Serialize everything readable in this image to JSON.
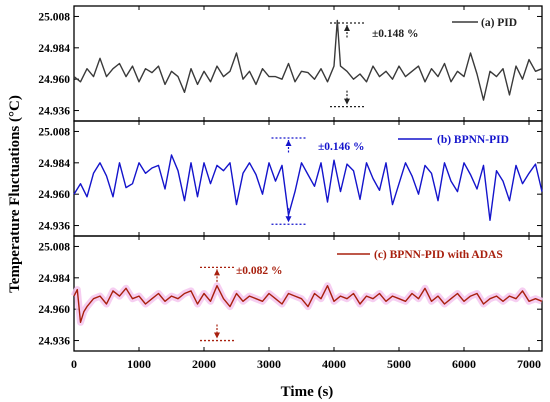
{
  "chart_data": {
    "type": "line",
    "xlabel": "Time (s)",
    "ylabel": "Temperature Fluctuations (°C)",
    "xlim": [
      0,
      7200
    ],
    "ylim": [
      24.928,
      25.016
    ],
    "x_ticks": [
      0,
      1000,
      2000,
      3000,
      4000,
      5000,
      6000,
      7000
    ],
    "x_tick_labels": [
      "0",
      "1000",
      "2000",
      "3000",
      "4000",
      "5000",
      "6000",
      "7000"
    ],
    "y_ticks": [
      24.936,
      24.96,
      24.984,
      25.008
    ],
    "y_tick_labels": [
      "24.936",
      "24.960",
      "24.984",
      "25.008"
    ],
    "panels": [
      {
        "legend": "(a) PID",
        "color": "#3a3a3a",
        "band_color": "",
        "annotation": "±0.148 %",
        "annotation_color": "#222222",
        "range_marker_x": 4200,
        "range_marker_ylim": [
          24.939,
          25.003
        ],
        "x": [
          0,
          100,
          200,
          300,
          400,
          500,
          600,
          700,
          800,
          900,
          1000,
          1100,
          1200,
          1300,
          1400,
          1500,
          1600,
          1700,
          1800,
          1900,
          2000,
          2100,
          2200,
          2300,
          2400,
          2500,
          2600,
          2700,
          2800,
          2900,
          3000,
          3100,
          3200,
          3300,
          3400,
          3500,
          3600,
          3700,
          3800,
          3900,
          4000,
          4050,
          4100,
          4200,
          4300,
          4400,
          4500,
          4600,
          4700,
          4800,
          4900,
          5000,
          5100,
          5200,
          5300,
          5400,
          5500,
          5600,
          5700,
          5800,
          5900,
          6000,
          6100,
          6200,
          6300,
          6400,
          6500,
          6600,
          6700,
          6800,
          6900,
          7000,
          7100,
          7200
        ],
        "values": [
          24.962,
          24.958,
          24.968,
          24.962,
          24.976,
          24.962,
          24.968,
          24.972,
          24.962,
          24.97,
          24.958,
          24.968,
          24.965,
          24.97,
          24.956,
          24.966,
          24.962,
          24.95,
          24.968,
          24.956,
          24.966,
          24.958,
          24.97,
          24.962,
          24.966,
          24.98,
          24.96,
          24.966,
          24.956,
          24.968,
          24.962,
          24.962,
          24.96,
          24.972,
          24.958,
          24.966,
          24.965,
          24.96,
          24.968,
          24.958,
          24.97,
          25.005,
          24.97,
          24.966,
          24.96,
          24.964,
          24.958,
          24.97,
          24.962,
          24.966,
          24.96,
          24.97,
          24.962,
          24.966,
          24.97,
          24.958,
          24.968,
          24.962,
          24.972,
          24.958,
          24.966,
          24.962,
          24.98,
          24.964,
          24.944,
          24.966,
          24.962,
          24.968,
          24.948,
          24.97,
          24.96,
          24.975,
          24.966,
          24.968
        ]
      },
      {
        "legend": "(b) BPNN-PID",
        "color": "#1414cc",
        "band_color": "",
        "annotation": "±0.146 %",
        "annotation_color": "#1414cc",
        "range_marker_x": 3300,
        "range_marker_ylim": [
          24.937,
          25.003
        ],
        "x": [
          0,
          100,
          200,
          300,
          400,
          500,
          600,
          700,
          800,
          900,
          1000,
          1100,
          1200,
          1300,
          1400,
          1500,
          1600,
          1700,
          1800,
          1900,
          2000,
          2100,
          2200,
          2300,
          2400,
          2500,
          2600,
          2700,
          2800,
          2900,
          3000,
          3100,
          3200,
          3300,
          3400,
          3500,
          3600,
          3700,
          3800,
          3900,
          4000,
          4100,
          4200,
          4300,
          4400,
          4500,
          4600,
          4700,
          4800,
          4900,
          5000,
          5100,
          5200,
          5300,
          5400,
          5500,
          5600,
          5700,
          5800,
          5900,
          6000,
          6100,
          6200,
          6300,
          6400,
          6500,
          6600,
          6700,
          6800,
          6900,
          7000,
          7100,
          7200
        ],
        "values": [
          24.96,
          24.968,
          24.958,
          24.976,
          24.984,
          24.974,
          24.958,
          24.984,
          24.965,
          24.968,
          24.984,
          24.976,
          24.98,
          24.982,
          24.964,
          24.99,
          24.978,
          24.955,
          24.984,
          24.958,
          24.984,
          24.968,
          24.982,
          24.978,
          24.984,
          24.952,
          24.976,
          24.984,
          24.975,
          24.96,
          24.984,
          24.97,
          24.982,
          24.944,
          24.962,
          24.984,
          24.975,
          24.966,
          24.984,
          24.954,
          24.986,
          24.962,
          24.983,
          24.978,
          24.956,
          24.984,
          24.972,
          24.963,
          24.984,
          24.952,
          24.968,
          24.984,
          24.974,
          24.96,
          24.982,
          24.976,
          24.955,
          24.984,
          24.97,
          24.962,
          24.984,
          24.975,
          24.964,
          24.982,
          24.94,
          24.978,
          24.97,
          24.955,
          24.982,
          24.968,
          24.976,
          24.983,
          24.962
        ]
      },
      {
        "legend": "(c) BPNN-PID with ADAS",
        "color": "#a8200e",
        "band_color": "#f5c6ef",
        "annotation": "±0.082 %",
        "annotation_color": "#a8200e",
        "range_marker_x": 2200,
        "range_marker_ylim": [
          24.936,
          24.992
        ],
        "x": [
          0,
          50,
          100,
          150,
          200,
          300,
          400,
          500,
          600,
          700,
          800,
          900,
          1000,
          1100,
          1200,
          1300,
          1400,
          1500,
          1600,
          1700,
          1800,
          1900,
          2000,
          2100,
          2200,
          2300,
          2400,
          2500,
          2600,
          2700,
          2800,
          2900,
          3000,
          3100,
          3200,
          3300,
          3400,
          3500,
          3600,
          3700,
          3800,
          3900,
          4000,
          4100,
          4200,
          4300,
          4400,
          4500,
          4600,
          4700,
          4800,
          4900,
          5000,
          5100,
          5200,
          5300,
          5400,
          5500,
          5600,
          5700,
          5800,
          5900,
          6000,
          6100,
          6200,
          6300,
          6400,
          6500,
          6600,
          6700,
          6800,
          6900,
          7000,
          7100,
          7200
        ],
        "values": [
          24.97,
          24.975,
          24.95,
          24.958,
          24.962,
          24.968,
          24.97,
          24.964,
          24.974,
          24.97,
          24.976,
          24.968,
          24.97,
          24.964,
          24.968,
          24.972,
          24.966,
          24.97,
          24.968,
          24.972,
          24.974,
          24.964,
          24.972,
          24.966,
          24.978,
          24.968,
          24.962,
          24.972,
          24.966,
          24.97,
          24.968,
          24.966,
          24.972,
          24.968,
          24.964,
          24.972,
          24.97,
          24.968,
          24.962,
          24.972,
          24.968,
          24.978,
          24.966,
          24.97,
          24.968,
          24.972,
          24.964,
          24.97,
          24.968,
          24.972,
          24.966,
          24.97,
          24.968,
          24.966,
          24.972,
          24.968,
          24.976,
          24.966,
          24.97,
          24.964,
          24.968,
          24.972,
          24.966,
          24.97,
          24.972,
          24.964,
          24.968,
          24.97,
          24.966,
          24.97,
          24.968,
          24.974,
          24.966,
          24.968,
          24.966
        ]
      }
    ]
  }
}
